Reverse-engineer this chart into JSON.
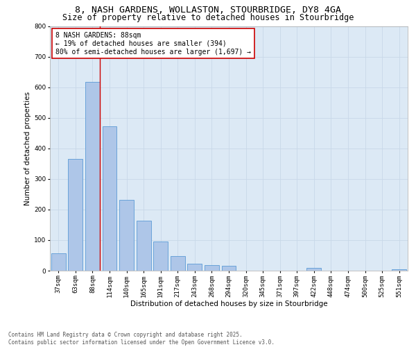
{
  "title_line1": "8, NASH GARDENS, WOLLASTON, STOURBRIDGE, DY8 4GA",
  "title_line2": "Size of property relative to detached houses in Stourbridge",
  "xlabel": "Distribution of detached houses by size in Stourbridge",
  "ylabel": "Number of detached properties",
  "categories": [
    "37sqm",
    "63sqm",
    "88sqm",
    "114sqm",
    "140sqm",
    "165sqm",
    "191sqm",
    "217sqm",
    "243sqm",
    "268sqm",
    "294sqm",
    "320sqm",
    "345sqm",
    "371sqm",
    "397sqm",
    "422sqm",
    "448sqm",
    "474sqm",
    "500sqm",
    "525sqm",
    "551sqm"
  ],
  "values": [
    57,
    365,
    617,
    472,
    232,
    163,
    96,
    47,
    22,
    18,
    15,
    0,
    0,
    0,
    0,
    8,
    0,
    0,
    0,
    0,
    5
  ],
  "bar_color": "#aec6e8",
  "bar_edge_color": "#5b9bd5",
  "vline_x_index": 2,
  "vline_color": "#cc0000",
  "annotation_text": "8 NASH GARDENS: 88sqm\n← 19% of detached houses are smaller (394)\n80% of semi-detached houses are larger (1,697) →",
  "annotation_box_color": "#ffffff",
  "annotation_box_edge_color": "#cc0000",
  "ylim": [
    0,
    800
  ],
  "yticks": [
    0,
    100,
    200,
    300,
    400,
    500,
    600,
    700,
    800
  ],
  "grid_color": "#c8d8e8",
  "background_color": "#dce9f5",
  "footer_line1": "Contains HM Land Registry data © Crown copyright and database right 2025.",
  "footer_line2": "Contains public sector information licensed under the Open Government Licence v3.0.",
  "title_fontsize": 9.5,
  "title2_fontsize": 8.5,
  "axis_label_fontsize": 7.5,
  "tick_fontsize": 6.5,
  "annotation_fontsize": 7,
  "footer_fontsize": 5.5
}
